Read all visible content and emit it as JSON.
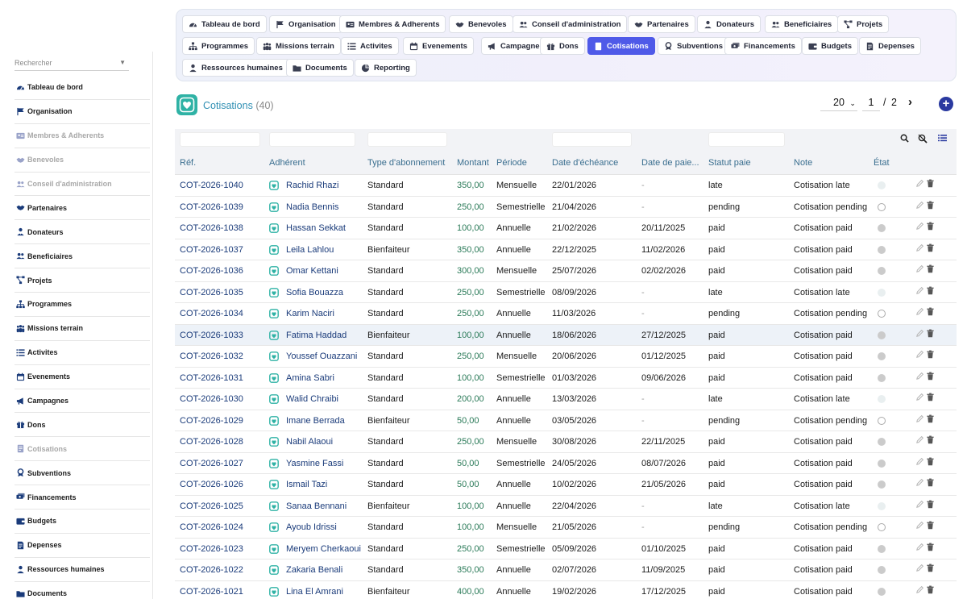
{
  "sidebar": {
    "search_placeholder": "Rechercher",
    "items": [
      {
        "label": "Tableau de bord",
        "icon": "dashboard-icon",
        "muted": false
      },
      {
        "label": "Organisation",
        "icon": "flag-icon",
        "muted": false
      },
      {
        "label": "Membres & Adherents",
        "icon": "id-card-icon",
        "muted": true
      },
      {
        "label": "Benevoles",
        "icon": "handshake-icon",
        "muted": true
      },
      {
        "label": "Conseil d'administration",
        "icon": "users-icon",
        "muted": true
      },
      {
        "label": "Partenaires",
        "icon": "handshake-icon",
        "muted": false
      },
      {
        "label": "Donateurs",
        "icon": "user-tie-icon",
        "muted": false
      },
      {
        "label": "Beneficiaires",
        "icon": "users-icon",
        "muted": false
      },
      {
        "label": "Projets",
        "icon": "project-diagram-icon",
        "muted": false
      },
      {
        "label": "Programmes",
        "icon": "sitemap-icon",
        "muted": false
      },
      {
        "label": "Missions terrain",
        "icon": "people-group-icon",
        "muted": false
      },
      {
        "label": "Activites",
        "icon": "list-icon",
        "muted": false
      },
      {
        "label": "Evenements",
        "icon": "calendar-icon",
        "muted": false
      },
      {
        "label": "Campagnes",
        "icon": "megaphone-icon",
        "muted": false
      },
      {
        "label": "Dons",
        "icon": "gift-icon",
        "muted": false
      },
      {
        "label": "Cotisations",
        "icon": "receipt-icon",
        "muted": true
      },
      {
        "label": "Subventions",
        "icon": "award-icon",
        "muted": false
      },
      {
        "label": "Financements",
        "icon": "money-icon",
        "muted": false
      },
      {
        "label": "Budgets",
        "icon": "wallet-icon",
        "muted": false
      },
      {
        "label": "Depenses",
        "icon": "invoice-icon",
        "muted": false
      },
      {
        "label": "Ressources humaines",
        "icon": "user-icon",
        "muted": false
      },
      {
        "label": "Documents",
        "icon": "folder-icon",
        "muted": false
      }
    ]
  },
  "topmenu": {
    "items": [
      {
        "label": "Tableau de bord",
        "icon": "dashboard-icon"
      },
      {
        "label": "Organisation",
        "icon": "flag-icon"
      },
      {
        "label": "Membres & Adherents",
        "icon": "id-card-icon"
      },
      {
        "label": "Benevoles",
        "icon": "handshake-icon"
      },
      {
        "label": "Conseil d'administration",
        "icon": "users-icon"
      },
      {
        "label": "Partenaires",
        "icon": "handshake-icon"
      },
      {
        "label": "Donateurs",
        "icon": "user-tie-icon"
      },
      {
        "label": "Beneficiaires",
        "icon": "users-icon"
      },
      {
        "label": "Projets",
        "icon": "project-diagram-icon"
      },
      {
        "label": "Programmes",
        "icon": "sitemap-icon"
      },
      {
        "label": "Missions terrain",
        "icon": "people-group-icon"
      },
      {
        "label": "Activites",
        "icon": "list-icon"
      },
      {
        "label": "Evenements",
        "icon": "calendar-icon"
      },
      {
        "label": "Campagnes",
        "icon": "megaphone-icon"
      },
      {
        "label": "Dons",
        "icon": "gift-icon"
      },
      {
        "label": "Cotisations",
        "icon": "receipt-icon",
        "active": true
      },
      {
        "label": "Subventions",
        "icon": "award-icon"
      },
      {
        "label": "Financements",
        "icon": "money-icon"
      },
      {
        "label": "Budgets",
        "icon": "wallet-icon"
      },
      {
        "label": "Depenses",
        "icon": "invoice-icon"
      },
      {
        "label": "Ressources humaines",
        "icon": "user-icon"
      },
      {
        "label": "Documents",
        "icon": "folder-icon"
      },
      {
        "label": "Reporting",
        "icon": "chart-pie-icon"
      }
    ]
  },
  "page": {
    "title": "Cotisations",
    "count": "(40)",
    "per_page": "20",
    "current_page": "1",
    "page_separator": "/",
    "total_pages": "2",
    "next_label": "›",
    "add_label": "+"
  },
  "colors": {
    "accent": "#4f5ae8",
    "link": "#1a3b7a",
    "amount": "#2a7a58",
    "header_text": "#3a6e8f",
    "logo": "#2fb2a5"
  },
  "table": {
    "columns": [
      "Réf.",
      "Adhérent",
      "Type d'abonnement",
      "Montant",
      "Période",
      "Date d'échéance",
      "Date de paie...",
      "Statut paie",
      "Note",
      "État"
    ],
    "rows": [
      {
        "ref": "COT-2026-1040",
        "adherent": "Rachid Rhazi",
        "type": "Standard",
        "montant": "350,00",
        "periode": "Mensuelle",
        "echeance": "22/01/2026",
        "paiement": "-",
        "statut": "late",
        "note": "Cotisation late"
      },
      {
        "ref": "COT-2026-1039",
        "adherent": "Nadia Bennis",
        "type": "Standard",
        "montant": "250,00",
        "periode": "Semestrielle",
        "echeance": "21/04/2026",
        "paiement": "-",
        "statut": "pending",
        "note": "Cotisation pending"
      },
      {
        "ref": "COT-2026-1038",
        "adherent": "Hassan Sekkat",
        "type": "Standard",
        "montant": "100,00",
        "periode": "Annuelle",
        "echeance": "21/02/2026",
        "paiement": "20/11/2025",
        "statut": "paid",
        "note": "Cotisation paid"
      },
      {
        "ref": "COT-2026-1037",
        "adherent": "Leila Lahlou",
        "type": "Bienfaiteur",
        "montant": "350,00",
        "periode": "Annuelle",
        "echeance": "22/12/2025",
        "paiement": "11/02/2026",
        "statut": "paid",
        "note": "Cotisation paid"
      },
      {
        "ref": "COT-2026-1036",
        "adherent": "Omar Kettani",
        "type": "Standard",
        "montant": "300,00",
        "periode": "Mensuelle",
        "echeance": "25/07/2026",
        "paiement": "02/02/2026",
        "statut": "paid",
        "note": "Cotisation paid"
      },
      {
        "ref": "COT-2026-1035",
        "adherent": "Sofia Bouazza",
        "type": "Standard",
        "montant": "250,00",
        "periode": "Semestrielle",
        "echeance": "08/09/2026",
        "paiement": "-",
        "statut": "late",
        "note": "Cotisation late"
      },
      {
        "ref": "COT-2026-1034",
        "adherent": "Karim Naciri",
        "type": "Standard",
        "montant": "250,00",
        "periode": "Annuelle",
        "echeance": "11/03/2026",
        "paiement": "-",
        "statut": "pending",
        "note": "Cotisation pending"
      },
      {
        "ref": "COT-2026-1033",
        "adherent": "Fatima Haddad",
        "type": "Bienfaiteur",
        "montant": "100,00",
        "periode": "Annuelle",
        "echeance": "18/06/2026",
        "paiement": "27/12/2025",
        "statut": "paid",
        "note": "Cotisation paid",
        "highlight": true
      },
      {
        "ref": "COT-2026-1032",
        "adherent": "Youssef Ouazzani",
        "type": "Standard",
        "montant": "250,00",
        "periode": "Mensuelle",
        "echeance": "20/06/2026",
        "paiement": "01/12/2025",
        "statut": "paid",
        "note": "Cotisation paid"
      },
      {
        "ref": "COT-2026-1031",
        "adherent": "Amina Sabri",
        "type": "Standard",
        "montant": "100,00",
        "periode": "Semestrielle",
        "echeance": "01/03/2026",
        "paiement": "09/06/2026",
        "statut": "paid",
        "note": "Cotisation paid"
      },
      {
        "ref": "COT-2026-1030",
        "adherent": "Walid Chraibi",
        "type": "Standard",
        "montant": "200,00",
        "periode": "Annuelle",
        "echeance": "13/03/2026",
        "paiement": "-",
        "statut": "late",
        "note": "Cotisation late"
      },
      {
        "ref": "COT-2026-1029",
        "adherent": "Imane Berrada",
        "type": "Bienfaiteur",
        "montant": "50,00",
        "periode": "Annuelle",
        "echeance": "03/05/2026",
        "paiement": "-",
        "statut": "pending",
        "note": "Cotisation pending"
      },
      {
        "ref": "COT-2026-1028",
        "adherent": "Nabil Alaoui",
        "type": "Standard",
        "montant": "250,00",
        "periode": "Mensuelle",
        "echeance": "30/08/2026",
        "paiement": "22/11/2025",
        "statut": "paid",
        "note": "Cotisation paid"
      },
      {
        "ref": "COT-2026-1027",
        "adherent": "Yasmine Fassi",
        "type": "Standard",
        "montant": "50,00",
        "periode": "Semestrielle",
        "echeance": "24/05/2026",
        "paiement": "08/07/2026",
        "statut": "paid",
        "note": "Cotisation paid"
      },
      {
        "ref": "COT-2026-1026",
        "adherent": "Ismail Tazi",
        "type": "Standard",
        "montant": "50,00",
        "periode": "Annuelle",
        "echeance": "10/02/2026",
        "paiement": "21/05/2026",
        "statut": "paid",
        "note": "Cotisation paid"
      },
      {
        "ref": "COT-2026-1025",
        "adherent": "Sanaa Bennani",
        "type": "Bienfaiteur",
        "montant": "100,00",
        "periode": "Annuelle",
        "echeance": "22/04/2026",
        "paiement": "-",
        "statut": "late",
        "note": "Cotisation late"
      },
      {
        "ref": "COT-2026-1024",
        "adherent": "Ayoub Idrissi",
        "type": "Standard",
        "montant": "100,00",
        "periode": "Mensuelle",
        "echeance": "21/05/2026",
        "paiement": "-",
        "statut": "pending",
        "note": "Cotisation pending"
      },
      {
        "ref": "COT-2026-1023",
        "adherent": "Meryem Cherkaoui",
        "type": "Standard",
        "montant": "250,00",
        "periode": "Semestrielle",
        "echeance": "05/09/2026",
        "paiement": "01/10/2025",
        "statut": "paid",
        "note": "Cotisation paid"
      },
      {
        "ref": "COT-2026-1022",
        "adherent": "Zakaria Benali",
        "type": "Standard",
        "montant": "350,00",
        "periode": "Annuelle",
        "echeance": "02/07/2026",
        "paiement": "11/09/2025",
        "statut": "paid",
        "note": "Cotisation paid"
      },
      {
        "ref": "COT-2026-1021",
        "adherent": "Lina El Amrani",
        "type": "Bienfaiteur",
        "montant": "400,00",
        "periode": "Annuelle",
        "echeance": "19/02/2026",
        "paiement": "17/12/2025",
        "statut": "paid",
        "note": "Cotisation paid"
      }
    ]
  }
}
